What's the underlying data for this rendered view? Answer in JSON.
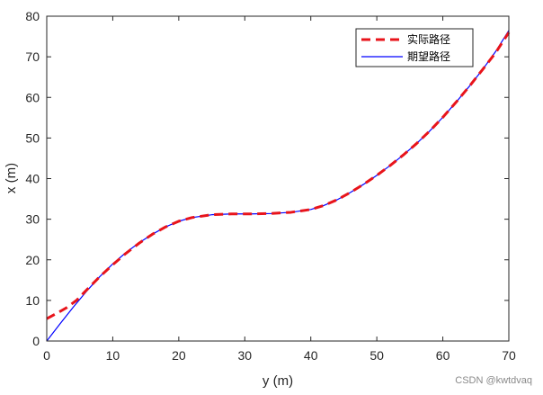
{
  "chart_data": {
    "type": "line",
    "xlabel": "y (m)",
    "ylabel": "x (m)",
    "xlim": [
      0,
      70
    ],
    "ylim": [
      0,
      80
    ],
    "xticks": [
      0,
      10,
      20,
      30,
      40,
      50,
      60,
      70
    ],
    "yticks": [
      0,
      10,
      20,
      30,
      40,
      50,
      60,
      70,
      80
    ],
    "grid": false,
    "legend_position": "top-right",
    "series": [
      {
        "name": "实际路径",
        "color": "#e8141b",
        "style": "dashed",
        "x": [
          0,
          1.5,
          3,
          4.5,
          6,
          8,
          10,
          12,
          14,
          16,
          18,
          20,
          22,
          25,
          28,
          31,
          34,
          37,
          40,
          42,
          44,
          46,
          48,
          50,
          52,
          54,
          56,
          58,
          60,
          62,
          64,
          66,
          68,
          70
        ],
        "y": [
          5.5,
          6.8,
          8.2,
          10.0,
          12.5,
          15.8,
          18.8,
          21.6,
          24.1,
          26.3,
          28.1,
          29.5,
          30.4,
          31.1,
          31.3,
          31.3,
          31.4,
          31.7,
          32.4,
          33.4,
          34.8,
          36.6,
          38.6,
          40.8,
          43.2,
          45.8,
          48.6,
          51.7,
          55.1,
          58.8,
          62.7,
          66.8,
          71.0,
          76.0
        ]
      },
      {
        "name": "期望路径",
        "color": "#0000ff",
        "style": "solid",
        "x": [
          0,
          2,
          4,
          6,
          8,
          10,
          12,
          14,
          16,
          18,
          20,
          22,
          25,
          28,
          31,
          34,
          37,
          40,
          42,
          44,
          46,
          48,
          50,
          52,
          54,
          56,
          58,
          60,
          62,
          64,
          66,
          68,
          70
        ],
        "y": [
          0,
          4.2,
          8.3,
          12.2,
          15.8,
          19.0,
          21.8,
          24.2,
          26.3,
          28.1,
          29.5,
          30.4,
          31.1,
          31.3,
          31.3,
          31.4,
          31.7,
          32.4,
          33.4,
          34.8,
          36.6,
          38.6,
          40.8,
          43.2,
          45.8,
          48.6,
          51.7,
          55.1,
          58.8,
          62.7,
          66.8,
          71.3,
          76.5
        ]
      }
    ]
  },
  "watermark": "CSDN @kwtdvaq"
}
